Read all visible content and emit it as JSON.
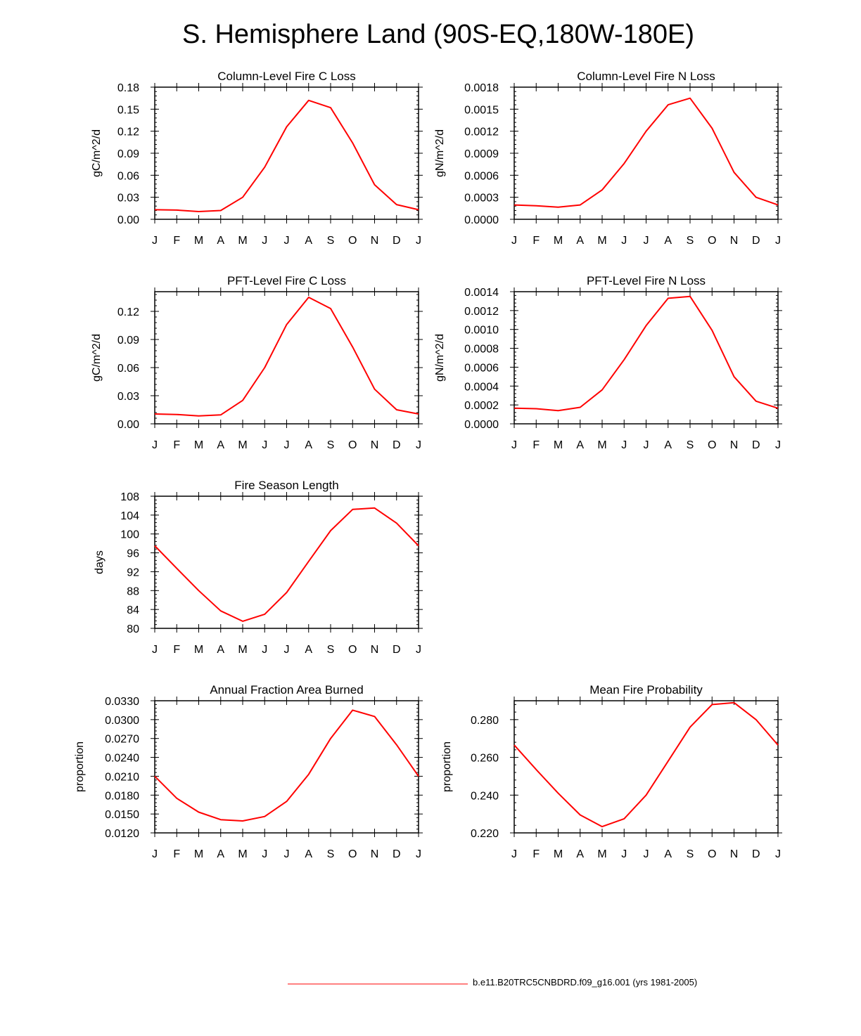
{
  "page": {
    "title": "S. Hemisphere Land (90S-EQ,180W-180E)"
  },
  "legend": {
    "label": "b.e11.B20TRC5CNBDRD.f09_g16.001 (yrs 1981-2005)",
    "line_color": "#ff0000"
  },
  "chart_data": [
    {
      "type": "line",
      "title": "Column-Level Fire C Loss",
      "ylabel": "gC/m^2/d",
      "xlabel": "",
      "categories": [
        "J",
        "F",
        "M",
        "A",
        "M",
        "J",
        "J",
        "A",
        "S",
        "O",
        "N",
        "D",
        "J"
      ],
      "values": [
        0.013,
        0.0125,
        0.0105,
        0.012,
        0.03,
        0.071,
        0.126,
        0.162,
        0.152,
        0.104,
        0.047,
        0.02,
        0.013
      ],
      "ylim": [
        0,
        0.18
      ],
      "yticks": [
        "0.00",
        "0.03",
        "0.06",
        "0.09",
        "0.12",
        "0.15",
        "0.18"
      ],
      "line_color": "#ff0000",
      "grid": false
    },
    {
      "type": "line",
      "title": "Column-Level Fire N Loss",
      "ylabel": "gN/m^2/d",
      "xlabel": "",
      "categories": [
        "J",
        "F",
        "M",
        "A",
        "M",
        "J",
        "J",
        "A",
        "S",
        "O",
        "N",
        "D",
        "J"
      ],
      "values": [
        0.000195,
        0.000185,
        0.000165,
        0.000195,
        0.0004,
        0.00076,
        0.0012,
        0.00156,
        0.00165,
        0.00124,
        0.00064,
        0.0003,
        0.000195
      ],
      "ylim": [
        0,
        0.0018
      ],
      "yticks": [
        "0.0000",
        "0.0003",
        "0.0006",
        "0.0009",
        "0.0012",
        "0.0015",
        "0.0018"
      ],
      "line_color": "#ff0000",
      "grid": false
    },
    {
      "type": "line",
      "title": "PFT-Level Fire C Loss",
      "ylabel": "gC/m^2/d",
      "xlabel": "",
      "categories": [
        "J",
        "F",
        "M",
        "A",
        "M",
        "J",
        "J",
        "A",
        "S",
        "O",
        "N",
        "D",
        "J"
      ],
      "values": [
        0.0105,
        0.01,
        0.0085,
        0.0095,
        0.025,
        0.06,
        0.106,
        0.135,
        0.123,
        0.082,
        0.037,
        0.015,
        0.0105
      ],
      "ylim": [
        0,
        0.141
      ],
      "yticks": [
        "0.00",
        "0.03",
        "0.06",
        "0.09",
        "0.12"
      ],
      "line_color": "#ff0000",
      "grid": false
    },
    {
      "type": "line",
      "title": "PFT-Level Fire N Loss",
      "ylabel": "gN/m^2/d",
      "xlabel": "",
      "categories": [
        "J",
        "F",
        "M",
        "A",
        "M",
        "J",
        "J",
        "A",
        "S",
        "O",
        "N",
        "D",
        "J"
      ],
      "values": [
        0.000165,
        0.00016,
        0.00014,
        0.000175,
        0.00036,
        0.00068,
        0.00104,
        0.00133,
        0.00135,
        0.00099,
        0.0005,
        0.00024,
        0.000165
      ],
      "ylim": [
        0,
        0.0014
      ],
      "yticks": [
        "0.0000",
        "0.0002",
        "0.0004",
        "0.0006",
        "0.0008",
        "0.0010",
        "0.0012",
        "0.0014"
      ],
      "line_color": "#ff0000",
      "grid": false
    },
    {
      "type": "line",
      "title": "Fire Season Length",
      "ylabel": "days",
      "xlabel": "",
      "categories": [
        "J",
        "F",
        "M",
        "A",
        "M",
        "J",
        "J",
        "A",
        "S",
        "O",
        "N",
        "D",
        "J"
      ],
      "values": [
        97.5,
        92.7,
        88.0,
        83.7,
        81.5,
        83.0,
        87.6,
        94.2,
        100.7,
        105.2,
        105.5,
        102.3,
        97.5
      ],
      "ylim": [
        80,
        108
      ],
      "yticks": [
        "80",
        "84",
        "88",
        "92",
        "96",
        "100",
        "104",
        "108"
      ],
      "line_color": "#ff0000",
      "grid": false
    },
    {
      "type": "line",
      "title": "Annual Fraction Area Burned",
      "ylabel": "proportion",
      "xlabel": "",
      "categories": [
        "J",
        "F",
        "M",
        "A",
        "M",
        "J",
        "J",
        "A",
        "S",
        "O",
        "N",
        "D",
        "J"
      ],
      "values": [
        0.021,
        0.0175,
        0.0153,
        0.0141,
        0.0139,
        0.0146,
        0.017,
        0.0213,
        0.027,
        0.0315,
        0.0305,
        0.026,
        0.021
      ],
      "ylim": [
        0.012,
        0.033
      ],
      "yticks": [
        "0.0120",
        "0.0150",
        "0.0180",
        "0.0210",
        "0.0240",
        "0.0270",
        "0.0300",
        "0.0330"
      ],
      "line_color": "#ff0000",
      "grid": false
    },
    {
      "type": "line",
      "title": "Mean Fire Probability",
      "ylabel": "proportion",
      "xlabel": "",
      "categories": [
        "J",
        "F",
        "M",
        "A",
        "M",
        "J",
        "J",
        "A",
        "S",
        "O",
        "N",
        "D",
        "J"
      ],
      "values": [
        0.2665,
        0.2535,
        0.241,
        0.2295,
        0.2233,
        0.2275,
        0.24,
        0.258,
        0.276,
        0.288,
        0.289,
        0.28,
        0.2665
      ],
      "ylim": [
        0.22,
        0.29
      ],
      "yticks": [
        "0.220",
        "0.240",
        "0.260",
        "0.280"
      ],
      "line_color": "#ff0000",
      "grid": false
    }
  ]
}
